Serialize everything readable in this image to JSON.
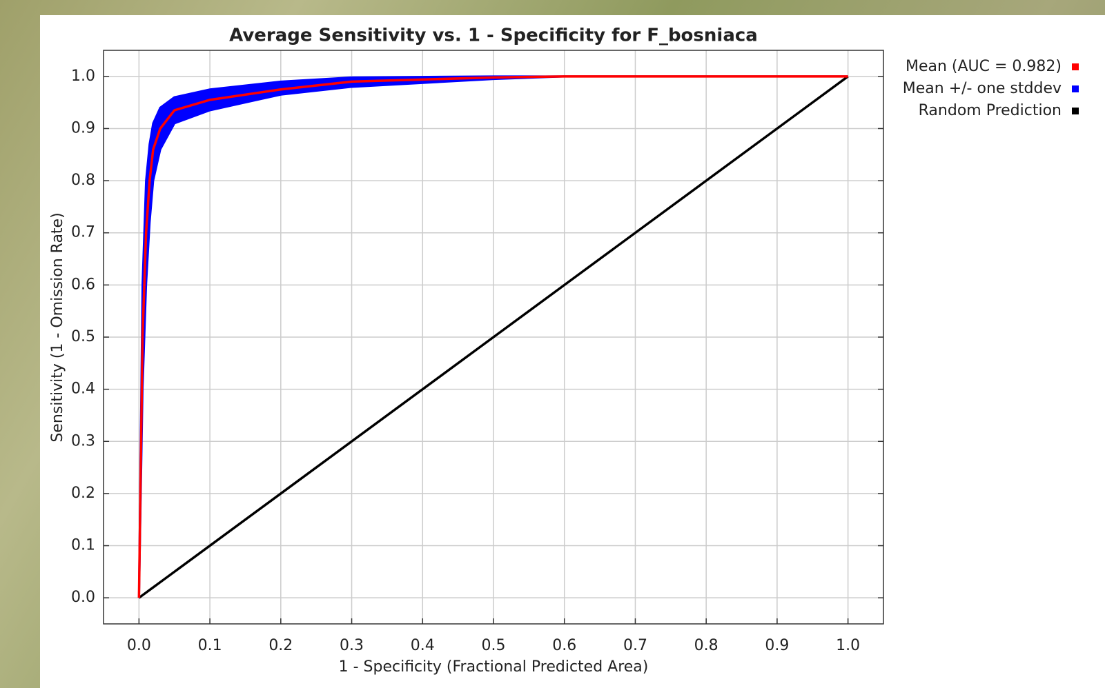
{
  "chart_data": {
    "type": "line",
    "title": "Average Sensitivity vs. 1 - Specificity for F_bosniaca",
    "x_label": "1 - Specificity (Fractional Predicted Area)",
    "y_label": "Sensitivity (1 - Omission Rate)",
    "x": [
      0,
      0.005,
      0.01,
      0.015,
      0.02,
      0.03,
      0.05,
      0.1,
      0.2,
      0.3,
      0.5,
      0.6,
      1.0
    ],
    "series": [
      {
        "name": "Mean (AUC = 0.982)",
        "color": "#ff0000",
        "values": [
          0,
          0.5,
          0.7,
          0.8,
          0.86,
          0.9,
          0.935,
          0.955,
          0.975,
          0.99,
          0.998,
          1.0,
          1.0
        ]
      },
      {
        "name": "Mean +/- one stddev",
        "color": "#0000ff",
        "low": [
          0,
          0.4,
          0.6,
          0.72,
          0.8,
          0.86,
          0.91,
          0.935,
          0.965,
          0.98,
          0.995,
          1.0,
          1.0
        ],
        "high": [
          0,
          0.6,
          0.8,
          0.87,
          0.91,
          0.94,
          0.96,
          0.975,
          0.99,
          0.998,
          1.0,
          1.0,
          1.0
        ]
      },
      {
        "name": "Random Prediction",
        "color": "#000000",
        "values": [
          0,
          0.005,
          0.01,
          0.015,
          0.02,
          0.03,
          0.05,
          0.1,
          0.2,
          0.3,
          0.5,
          0.6,
          1.0
        ]
      }
    ],
    "xlim": [
      -0.05,
      1.05
    ],
    "ylim": [
      -0.05,
      1.05
    ],
    "xticks": [
      {
        "value": 0,
        "label": "0.0"
      },
      0.1,
      0.2,
      0.3,
      0.4,
      0.5,
      0.6,
      0.7,
      0.8,
      0.9,
      {
        "value": 1,
        "label": "1.0"
      }
    ],
    "yticks": [
      {
        "value": 0,
        "label": "0.0"
      },
      0.1,
      0.2,
      0.3,
      0.4,
      0.5,
      0.6,
      0.7,
      0.8,
      0.9,
      {
        "value": 1,
        "label": "1.0"
      }
    ],
    "grid": true,
    "legend": "outside-right"
  }
}
